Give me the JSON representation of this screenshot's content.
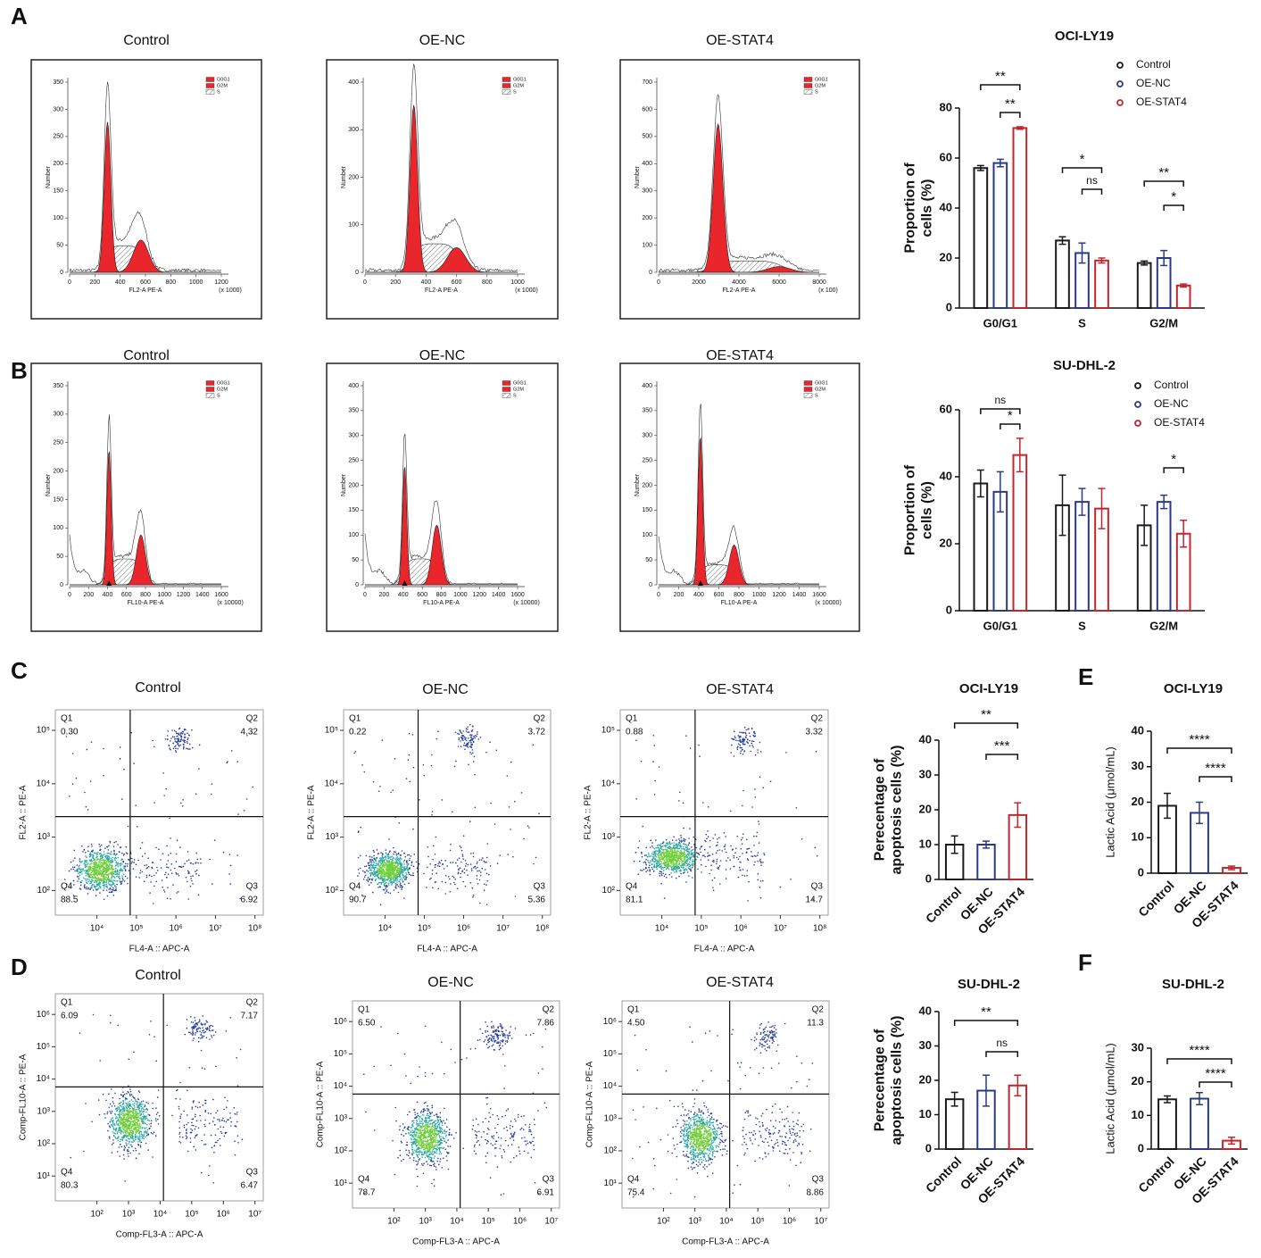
{
  "panel_labels": [
    "A",
    "B",
    "C",
    "D",
    "E",
    "F"
  ],
  "histograms": [
    {
      "title": "Control",
      "x_label": "FL2-A PE-A",
      "y_label": "Number",
      "scale": "(x 1000)",
      "legend": [
        "G0G1",
        "G2M",
        "S"
      ],
      "xlim": [
        0,
        1200
      ],
      "xticks": [
        0,
        200,
        400,
        600,
        800,
        1000,
        1200
      ],
      "ylim": [
        0,
        350
      ],
      "yticks": [
        0,
        50,
        100,
        150,
        200,
        250,
        300,
        350
      ]
    },
    {
      "title": "OE-NC",
      "x_label": "FL2-A PE-A",
      "y_label": "Number",
      "scale": "(x 1000)",
      "legend": [
        "G0G1",
        "G2M",
        "S"
      ],
      "xlim": [
        0,
        1000
      ],
      "xticks": [
        0,
        200,
        400,
        600,
        800,
        1000
      ],
      "ylim": [
        0,
        400
      ],
      "yticks": [
        0,
        100,
        200,
        300,
        400
      ]
    },
    {
      "title": "OE-STAT4",
      "x_label": "FL2-A PE-A",
      "y_label": "Number",
      "scale": "(x 100)",
      "legend": [
        "G0G1",
        "G2M",
        "S"
      ],
      "xlim": [
        0,
        8000
      ],
      "xticks": [
        0,
        2000,
        4000,
        6000,
        8000
      ],
      "ylim": [
        0,
        700
      ],
      "yticks": [
        0,
        100,
        200,
        300,
        400,
        500,
        600,
        700
      ]
    },
    {
      "title": "Control",
      "x_label": "FL10-A PE-A",
      "y_label": "Number",
      "scale": "(x 10000)",
      "legend": [
        "G0G1",
        "G2M",
        "S"
      ],
      "xlim": [
        0,
        1600
      ],
      "xticks": [
        0,
        200,
        400,
        600,
        800,
        1000,
        1200,
        1400,
        1600
      ],
      "ylim": [
        0,
        350
      ],
      "yticks": [
        0,
        50,
        100,
        150,
        200,
        250,
        300,
        350
      ]
    },
    {
      "title": "OE-NC",
      "x_label": "FL10-A PE-A",
      "y_label": "Number",
      "scale": "(x 10000)",
      "legend": [
        "G0G1",
        "G2M",
        "S"
      ],
      "xlim": [
        0,
        1600
      ],
      "xticks": [
        0,
        200,
        400,
        600,
        800,
        1000,
        1200,
        1400,
        1600
      ],
      "ylim": [
        0,
        400
      ],
      "yticks": [
        0,
        50,
        100,
        150,
        200,
        250,
        300,
        350,
        400
      ]
    },
    {
      "title": "OE-STAT4",
      "x_label": "FL10-A PE-A",
      "y_label": "Number",
      "scale": "(x 10000)",
      "legend": [
        "G0G1",
        "G2M",
        "S"
      ],
      "xlim": [
        0,
        1600
      ],
      "xticks": [
        0,
        200,
        400,
        600,
        800,
        1000,
        1200,
        1400,
        1600
      ],
      "ylim": [
        0,
        400
      ],
      "yticks": [
        0,
        50,
        100,
        150,
        200,
        250,
        300,
        350,
        400
      ]
    }
  ],
  "flow_plots": [
    {
      "title": "Control",
      "x_label": "FL4-A :: APC-A",
      "y_label": "FL2-A :: PE-A",
      "xticks": [
        "10⁴",
        "10⁵",
        "10⁶",
        "10⁷",
        "10⁸"
      ],
      "yticks": [
        "10²",
        "10³",
        "10⁴",
        "10⁵"
      ],
      "quadrants": [
        {
          "name": "Q1",
          "value": "0.30"
        },
        {
          "name": "Q2",
          "value": "4.32"
        },
        {
          "name": "Q3",
          "value": "6.92"
        },
        {
          "name": "Q4",
          "value": "88.5"
        }
      ]
    },
    {
      "title": "OE-NC",
      "x_label": "FL4-A :: APC-A",
      "y_label": "FL2-A :: PE-A",
      "xticks": [
        "10⁴",
        "10⁵",
        "10⁶",
        "10⁷",
        "10⁸"
      ],
      "yticks": [
        "10²",
        "10³",
        "10⁴",
        "10⁵"
      ],
      "quadrants": [
        {
          "name": "Q1",
          "value": "0.22"
        },
        {
          "name": "Q2",
          "value": "3.72"
        },
        {
          "name": "Q3",
          "value": "5.36"
        },
        {
          "name": "Q4",
          "value": "90.7"
        }
      ]
    },
    {
      "title": "OE-STAT4",
      "x_label": "FL4-A :: APC-A",
      "y_label": "FL2-A :: PE-A",
      "xticks": [
        "10⁴",
        "10⁵",
        "10⁶",
        "10⁷",
        "10⁸"
      ],
      "yticks": [
        "10²",
        "10³",
        "10⁴",
        "10⁵"
      ],
      "quadrants": [
        {
          "name": "Q1",
          "value": "0.88"
        },
        {
          "name": "Q2",
          "value": "3.32"
        },
        {
          "name": "Q3",
          "value": "14.7"
        },
        {
          "name": "Q4",
          "value": "81.1"
        }
      ]
    },
    {
      "title": "Control",
      "x_label": "Comp-FL3-A :: APC-A",
      "y_label": "Comp-FL10-A :: PE-A",
      "xticks": [
        "10²",
        "10³",
        "10⁴",
        "10⁵",
        "10⁶",
        "10⁷"
      ],
      "yticks": [
        "10¹",
        "10²",
        "10³",
        "10⁴",
        "10⁵",
        "10⁶"
      ],
      "quadrants": [
        {
          "name": "Q1",
          "value": "6.09"
        },
        {
          "name": "Q2",
          "value": "7.17"
        },
        {
          "name": "Q3",
          "value": "6.47"
        },
        {
          "name": "Q4",
          "value": "80.3"
        }
      ]
    },
    {
      "title": "OE-NC",
      "x_label": "Comp-FL3-A :: APC-A",
      "y_label": "Comp-FL10-A :: PE-A",
      "xticks": [
        "10²",
        "10³",
        "10⁴",
        "10⁵",
        "10⁶",
        "10⁷"
      ],
      "yticks": [
        "10¹",
        "10²",
        "10³",
        "10⁴",
        "10⁵",
        "10⁶"
      ],
      "quadrants": [
        {
          "name": "Q1",
          "value": "6.50"
        },
        {
          "name": "Q2",
          "value": "7.86"
        },
        {
          "name": "Q3",
          "value": "6.91"
        },
        {
          "name": "Q4",
          "value": "78.7"
        }
      ]
    },
    {
      "title": "OE-STAT4",
      "x_label": "Comp-FL3-A :: APC-A",
      "y_label": "Comp-FL10-A :: PE-A",
      "xticks": [
        "10²",
        "10³",
        "10⁴",
        "10⁵",
        "10⁶",
        "10⁷"
      ],
      "yticks": [
        "10¹",
        "10²",
        "10³",
        "10⁴",
        "10⁵",
        "10⁶"
      ],
      "quadrants": [
        {
          "name": "Q1",
          "value": "4.50"
        },
        {
          "name": "Q2",
          "value": "11.3"
        },
        {
          "name": "Q3",
          "value": "8.86"
        },
        {
          "name": "Q4",
          "value": "75.4"
        }
      ]
    }
  ],
  "chart_data": [
    {
      "type": "grouped_bar",
      "title": "OCI-LY19",
      "y_label": [
        "Proportion of",
        "cells (%)"
      ],
      "categories": [
        "G0/G1",
        "S",
        "G2/M"
      ],
      "series": [
        {
          "name": "Control",
          "color": "#1a1a1a",
          "values": [
            56,
            27,
            18
          ],
          "errors": [
            1,
            1.5,
            0.8
          ]
        },
        {
          "name": "OE-NC",
          "color": "#2b3a87",
          "values": [
            58,
            22,
            20
          ],
          "errors": [
            1.5,
            4,
            3
          ]
        },
        {
          "name": "OE-STAT4",
          "color": "#c0272d",
          "values": [
            72,
            19,
            9
          ],
          "errors": [
            0.5,
            1,
            0.6
          ]
        }
      ],
      "ylim": [
        0,
        80
      ],
      "yticks": [
        0,
        20,
        40,
        60,
        80
      ],
      "annotations": [
        "**",
        "**",
        "*",
        "ns",
        "**",
        "*"
      ]
    },
    {
      "type": "grouped_bar",
      "title": "SU-DHL-2",
      "y_label": [
        "Proportion of",
        "cells (%)"
      ],
      "categories": [
        "G0/G1",
        "S",
        "G2/M"
      ],
      "series": [
        {
          "name": "Control",
          "color": "#1a1a1a",
          "values": [
            38,
            31.5,
            25.5
          ],
          "errors": [
            4,
            9,
            6
          ]
        },
        {
          "name": "OE-NC",
          "color": "#2b3a87",
          "values": [
            35.5,
            32.5,
            32.5
          ],
          "errors": [
            6,
            4,
            2
          ]
        },
        {
          "name": "OE-STAT4",
          "color": "#c0272d",
          "values": [
            46.5,
            30.5,
            23
          ],
          "errors": [
            5,
            6,
            4
          ]
        }
      ],
      "ylim": [
        0,
        60
      ],
      "yticks": [
        0,
        20,
        40,
        60
      ],
      "annotations": [
        "ns",
        "*",
        "*"
      ]
    },
    {
      "type": "bar",
      "title": "OCI-LY19",
      "y_label": [
        "Perecentage of",
        "apoptosis cells (%)"
      ],
      "categories": [
        "Control",
        "OE-NC",
        "OE-STAT4"
      ],
      "colors": [
        "#1a1a1a",
        "#2b3a87",
        "#c0272d"
      ],
      "values": [
        10,
        10,
        18.5
      ],
      "errors": [
        2.5,
        1,
        3.5
      ],
      "ylim": [
        0,
        40
      ],
      "yticks": [
        0,
        10,
        20,
        30,
        40
      ],
      "annotations": [
        "**",
        "***"
      ]
    },
    {
      "type": "bar",
      "title": "SU-DHL-2",
      "y_label": [
        "Perecentage of",
        "apoptosis cells (%)"
      ],
      "categories": [
        "Control",
        "OE-NC",
        "OE-STAT4"
      ],
      "colors": [
        "#1a1a1a",
        "#2b3a87",
        "#c0272d"
      ],
      "values": [
        14.5,
        17,
        18.5
      ],
      "errors": [
        2,
        4.5,
        3
      ],
      "ylim": [
        0,
        40
      ],
      "yticks": [
        0,
        10,
        20,
        30,
        40
      ],
      "annotations": [
        "**",
        "ns"
      ]
    },
    {
      "type": "bar",
      "title": "OCI-LY19",
      "y_label": [
        "Lactic Acid (μmol/mL)"
      ],
      "categories": [
        "Control",
        "OE-NC",
        "OE-STAT4"
      ],
      "colors": [
        "#1a1a1a",
        "#2b3a87",
        "#c0272d"
      ],
      "values": [
        19,
        17,
        1.5
      ],
      "errors": [
        3.5,
        3,
        0.5
      ],
      "ylim": [
        0,
        40
      ],
      "yticks": [
        0,
        10,
        20,
        30,
        40
      ],
      "annotations": [
        "****",
        "****"
      ]
    },
    {
      "type": "bar",
      "title": "SU-DHL-2",
      "y_label": [
        "Lactic Acid (μmol/mL)"
      ],
      "categories": [
        "Control",
        "OE-NC",
        "OE-STAT4"
      ],
      "colors": [
        "#1a1a1a",
        "#2b3a87",
        "#c0272d"
      ],
      "values": [
        14.8,
        15,
        2.5
      ],
      "errors": [
        1,
        1.8,
        1
      ],
      "ylim": [
        0,
        30
      ],
      "yticks": [
        0,
        10,
        20,
        30
      ],
      "annotations": [
        "****",
        "****"
      ]
    }
  ]
}
